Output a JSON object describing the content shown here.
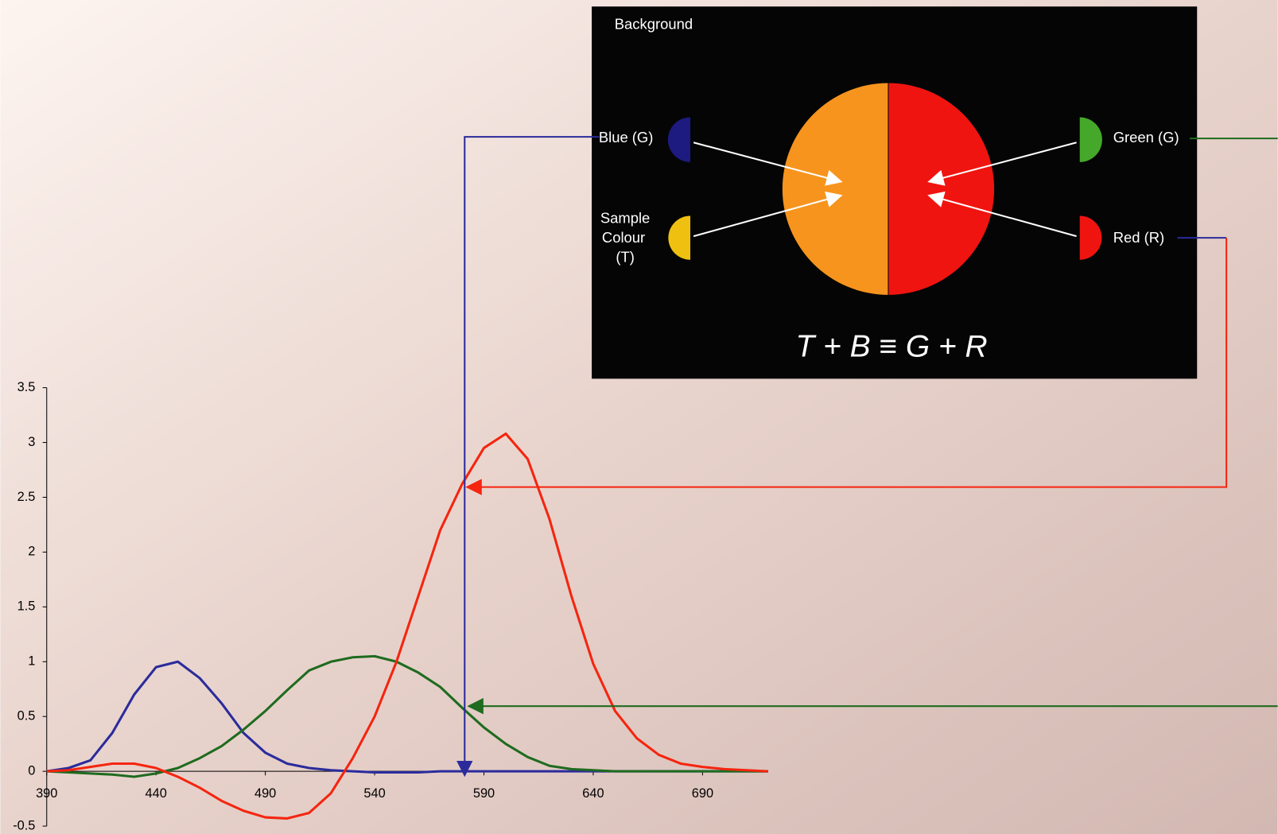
{
  "chart_data": {
    "type": "line",
    "x": [
      390,
      400,
      410,
      420,
      430,
      440,
      450,
      460,
      470,
      480,
      490,
      500,
      510,
      520,
      530,
      540,
      550,
      560,
      570,
      580,
      590,
      600,
      610,
      620,
      630,
      640,
      650,
      660,
      670,
      680,
      690,
      700,
      710,
      720
    ],
    "series": [
      {
        "color": "#2b2b9c",
        "values": [
          0,
          0.03,
          0.1,
          0.35,
          0.7,
          0.95,
          1.0,
          0.85,
          0.62,
          0.35,
          0.17,
          0.07,
          0.03,
          0.01,
          0,
          -0.01,
          -0.01,
          -0.01,
          0,
          0,
          0,
          0,
          0,
          0,
          0,
          0,
          0,
          0,
          0,
          0,
          0,
          0,
          0,
          0
        ]
      },
      {
        "color": "#1f6b1f",
        "values": [
          0,
          -0.01,
          -0.02,
          -0.03,
          -0.05,
          -0.02,
          0.03,
          0.12,
          0.23,
          0.38,
          0.55,
          0.74,
          0.92,
          1.0,
          1.04,
          1.05,
          1.0,
          0.9,
          0.77,
          0.58,
          0.4,
          0.25,
          0.13,
          0.05,
          0.02,
          0.01,
          0,
          0,
          0,
          0,
          0,
          0,
          0,
          0
        ]
      },
      {
        "color": "#f5250f",
        "values": [
          0,
          0.01,
          0.04,
          0.07,
          0.07,
          0.03,
          -0.05,
          -0.15,
          -0.27,
          -0.36,
          -0.42,
          -0.43,
          -0.38,
          -0.2,
          0.12,
          0.5,
          1.0,
          1.6,
          2.2,
          2.62,
          2.95,
          3.08,
          2.85,
          2.3,
          1.6,
          0.98,
          0.55,
          0.3,
          0.15,
          0.07,
          0.04,
          0.02,
          0.01,
          0
        ]
      }
    ],
    "xlim": [
      390,
      720
    ],
    "xticks": [
      390,
      440,
      490,
      540,
      590,
      640,
      690
    ],
    "ylim": [
      -0.5,
      3.5
    ],
    "yticks": [
      -0.5,
      0,
      0.5,
      1,
      1.5,
      2,
      2.5,
      3,
      3.5
    ],
    "grid": false
  },
  "diagram": {
    "background": "Background",
    "blue": "Blue (G)",
    "sample": [
      "Sample",
      "Colour",
      "(T)"
    ],
    "green": "Green (G)",
    "red": "Red (R)",
    "equation": "T + B ≡ G + R"
  }
}
